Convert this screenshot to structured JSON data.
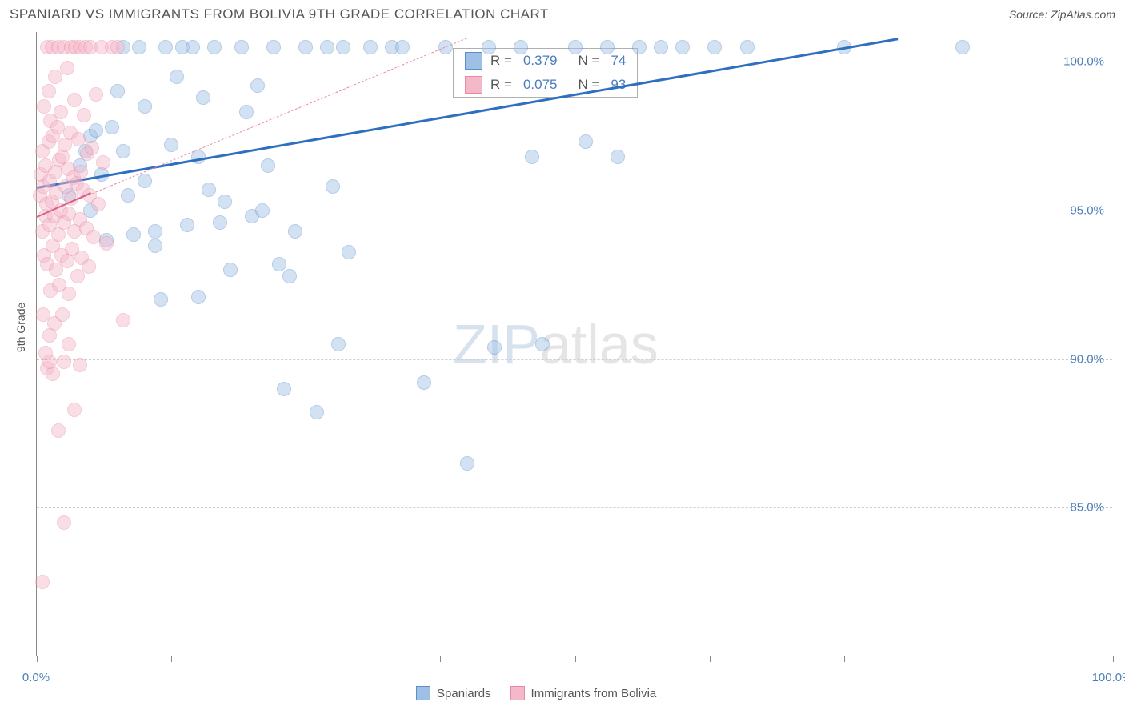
{
  "header": {
    "title": "SPANIARD VS IMMIGRANTS FROM BOLIVIA 9TH GRADE CORRELATION CHART",
    "source": "Source: ZipAtlas.com"
  },
  "chart": {
    "type": "scatter",
    "ylabel": "9th Grade",
    "xlim": [
      0,
      100
    ],
    "ylim": [
      80,
      101
    ],
    "xtick_positions": [
      0,
      12.5,
      25,
      37.5,
      50,
      62.5,
      75,
      87.5,
      100
    ],
    "xtick_labels": {
      "0": "0.0%",
      "100": "100.0%"
    },
    "ytick_positions": [
      85,
      90,
      95,
      100
    ],
    "ytick_labels": {
      "85": "85.0%",
      "90": "90.0%",
      "95": "95.0%",
      "100": "100.0%"
    },
    "grid_color": "#cccccc",
    "axis_color": "#888888",
    "background_color": "#ffffff",
    "tick_label_color": "#4a7ebb",
    "point_radius": 9,
    "point_opacity": 0.45,
    "series": [
      {
        "name": "Spaniards",
        "color_fill": "#9fc0e6",
        "color_stroke": "#5b8fc9",
        "r_value": "0.379",
        "n_value": "74",
        "trend": {
          "x1": 0,
          "y1": 95.8,
          "x2": 80,
          "y2": 100.8,
          "solid": true,
          "color": "#2f6fc0",
          "width": 2.5
        },
        "points": [
          [
            3,
            95.5
          ],
          [
            4,
            96.5
          ],
          [
            4.5,
            97
          ],
          [
            5,
            97.5
          ],
          [
            5,
            95
          ],
          [
            5.5,
            97.7
          ],
          [
            6,
            96.2
          ],
          [
            6.5,
            94
          ],
          [
            7,
            97.8
          ],
          [
            7.5,
            99
          ],
          [
            8,
            100.5
          ],
          [
            8,
            97
          ],
          [
            8.5,
            95.5
          ],
          [
            9,
            94.2
          ],
          [
            9.5,
            100.5
          ],
          [
            10,
            98.5
          ],
          [
            10,
            96
          ],
          [
            11,
            93.8
          ],
          [
            11,
            94.3
          ],
          [
            11.5,
            92
          ],
          [
            12,
            100.5
          ],
          [
            12.5,
            97.2
          ],
          [
            13,
            99.5
          ],
          [
            13.5,
            100.5
          ],
          [
            14,
            94.5
          ],
          [
            14.5,
            100.5
          ],
          [
            15,
            92.1
          ],
          [
            15,
            96.8
          ],
          [
            15.5,
            98.8
          ],
          [
            16,
            95.7
          ],
          [
            16.5,
            100.5
          ],
          [
            17,
            94.6
          ],
          [
            17.5,
            95.3
          ],
          [
            18,
            93
          ],
          [
            19,
            100.5
          ],
          [
            19.5,
            98.3
          ],
          [
            20,
            94.8
          ],
          [
            20.5,
            99.2
          ],
          [
            21,
            95
          ],
          [
            21.5,
            96.5
          ],
          [
            22,
            100.5
          ],
          [
            22.5,
            93.2
          ],
          [
            23,
            89
          ],
          [
            23.5,
            92.8
          ],
          [
            24,
            94.3
          ],
          [
            25,
            100.5
          ],
          [
            26,
            88.2
          ],
          [
            27,
            100.5
          ],
          [
            27.5,
            95.8
          ],
          [
            28,
            90.5
          ],
          [
            28.5,
            100.5
          ],
          [
            29,
            93.6
          ],
          [
            31,
            100.5
          ],
          [
            33,
            100.5
          ],
          [
            34,
            100.5
          ],
          [
            36,
            89.2
          ],
          [
            38,
            100.5
          ],
          [
            40,
            86.5
          ],
          [
            42,
            100.5
          ],
          [
            42.5,
            90.4
          ],
          [
            45,
            100.5
          ],
          [
            46,
            96.8
          ],
          [
            47,
            90.5
          ],
          [
            50,
            100.5
          ],
          [
            51,
            97.3
          ],
          [
            53,
            100.5
          ],
          [
            54,
            96.8
          ],
          [
            56,
            100.5
          ],
          [
            58,
            100.5
          ],
          [
            75,
            100.5
          ],
          [
            60,
            100.5
          ],
          [
            86,
            100.5
          ],
          [
            63,
            100.5
          ],
          [
            66,
            100.5
          ]
        ]
      },
      {
        "name": "Immigants",
        "color_fill": "#f5b8c9",
        "color_stroke": "#e88aa5",
        "r_value": "0.075",
        "n_value": "93",
        "trend": {
          "x1": 0,
          "y1": 94.8,
          "x2": 40,
          "y2": 100.8,
          "solid": false,
          "color": "#e88aa5",
          "width": 1.5
        },
        "trend_short": {
          "x1": 0,
          "y1": 94.8,
          "x2": 5,
          "y2": 95.6,
          "solid": true,
          "color": "#d85f85",
          "width": 2
        },
        "points": [
          [
            0.3,
            95.5
          ],
          [
            0.4,
            96.2
          ],
          [
            0.5,
            94.3
          ],
          [
            0.5,
            97
          ],
          [
            0.6,
            95.8
          ],
          [
            0.7,
            93.5
          ],
          [
            0.7,
            98.5
          ],
          [
            0.8,
            94.8
          ],
          [
            0.8,
            96.5
          ],
          [
            0.9,
            95.2
          ],
          [
            1.0,
            100.5
          ],
          [
            1.0,
            93.2
          ],
          [
            1.1,
            97.3
          ],
          [
            1.1,
            99
          ],
          [
            1.2,
            94.5
          ],
          [
            1.2,
            96
          ],
          [
            1.3,
            92.3
          ],
          [
            1.3,
            98
          ],
          [
            1.4,
            95.3
          ],
          [
            1.4,
            100.5
          ],
          [
            1.5,
            93.8
          ],
          [
            1.5,
            97.5
          ],
          [
            1.6,
            91.2
          ],
          [
            1.6,
            94.8
          ],
          [
            1.7,
            96.3
          ],
          [
            1.7,
            99.5
          ],
          [
            1.8,
            95.6
          ],
          [
            1.8,
            93
          ],
          [
            1.9,
            97.8
          ],
          [
            2.0,
            94.2
          ],
          [
            2.0,
            100.5
          ],
          [
            2.1,
            96.7
          ],
          [
            2.1,
            92.5
          ],
          [
            2.2,
            95
          ],
          [
            2.2,
            98.3
          ],
          [
            2.3,
            93.5
          ],
          [
            2.4,
            96.8
          ],
          [
            2.4,
            91.5
          ],
          [
            2.5,
            100.5
          ],
          [
            2.5,
            94.6
          ],
          [
            2.6,
            97.2
          ],
          [
            2.7,
            95.8
          ],
          [
            2.8,
            93.3
          ],
          [
            2.8,
            99.8
          ],
          [
            2.9,
            96.4
          ],
          [
            3.0,
            94.9
          ],
          [
            3.0,
            92.2
          ],
          [
            3.1,
            97.6
          ],
          [
            3.2,
            95.4
          ],
          [
            3.2,
            100.5
          ],
          [
            3.3,
            93.7
          ],
          [
            3.4,
            96.1
          ],
          [
            3.5,
            98.7
          ],
          [
            3.5,
            94.3
          ],
          [
            3.6,
            100.5
          ],
          [
            3.7,
            95.9
          ],
          [
            3.8,
            92.8
          ],
          [
            3.9,
            97.4
          ],
          [
            4.0,
            94.7
          ],
          [
            4.0,
            100.5
          ],
          [
            4.1,
            96.3
          ],
          [
            4.2,
            93.4
          ],
          [
            4.3,
            95.7
          ],
          [
            4.4,
            98.2
          ],
          [
            4.5,
            100.5
          ],
          [
            4.6,
            94.4
          ],
          [
            4.7,
            96.9
          ],
          [
            4.8,
            93.1
          ],
          [
            4.9,
            95.5
          ],
          [
            5.0,
            100.5
          ],
          [
            5.1,
            97.1
          ],
          [
            5.3,
            94.1
          ],
          [
            5.5,
            98.9
          ],
          [
            5.7,
            95.2
          ],
          [
            6.0,
            100.5
          ],
          [
            6.2,
            96.6
          ],
          [
            6.5,
            93.9
          ],
          [
            7.0,
            100.5
          ],
          [
            7.5,
            100.5
          ],
          [
            8.0,
            91.3
          ],
          [
            0.5,
            82.5
          ],
          [
            1.0,
            89.7
          ],
          [
            1.5,
            89.5
          ],
          [
            2.0,
            87.6
          ],
          [
            2.5,
            84.5
          ],
          [
            3.0,
            90.5
          ],
          [
            3.5,
            88.3
          ],
          [
            4.0,
            89.8
          ],
          [
            1.2,
            90.8
          ],
          [
            1.2,
            89.9
          ],
          [
            0.8,
            90.2
          ],
          [
            0.6,
            91.5
          ],
          [
            2.5,
            89.9
          ]
        ]
      }
    ]
  },
  "legend_top": {
    "r_label": "R =",
    "n_label": "N ="
  },
  "legend_bottom": {
    "items": [
      {
        "label": "Spaniards",
        "fill": "#9fc0e6",
        "stroke": "#5b8fc9"
      },
      {
        "label": "Immigrants from Bolivia",
        "fill": "#f5b8c9",
        "stroke": "#e88aa5"
      }
    ]
  },
  "watermark": {
    "text_zip": "ZIP",
    "text_rest": "atlas"
  }
}
